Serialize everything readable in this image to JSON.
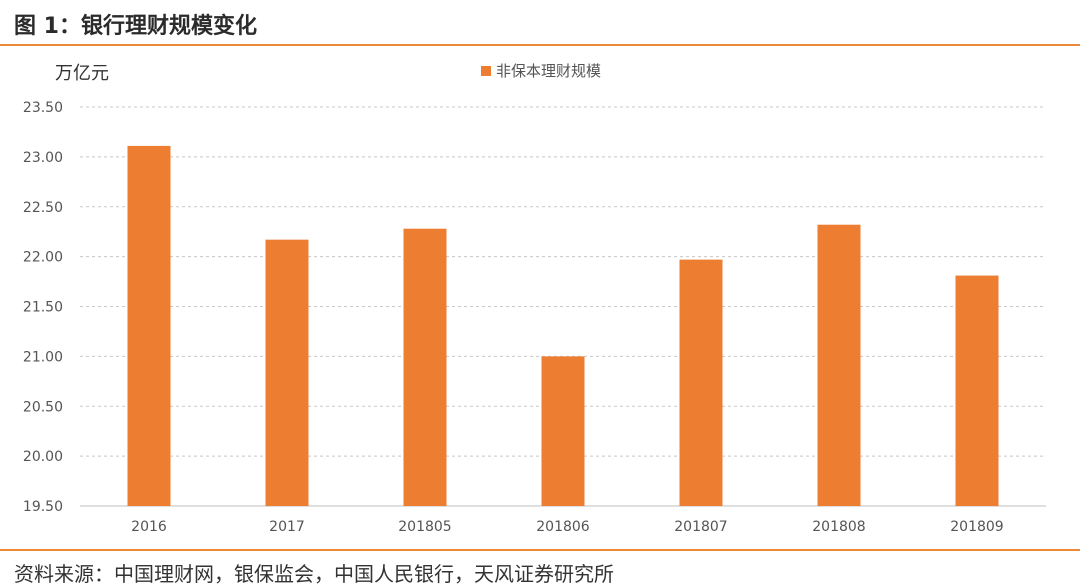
{
  "figure": {
    "title": "图 1：银行理财规模变化",
    "source": "资料来源：中国理财网，银保监会，中国人民银行，天风证券研究所"
  },
  "colors": {
    "accent": "#ec8a3a",
    "bar": "#ed7d31",
    "grid": "#c8c8c8"
  },
  "chart_data": {
    "type": "bar",
    "title": "",
    "xlabel": "",
    "ylabel": "万亿元",
    "categories": [
      "2016",
      "2017",
      "201805",
      "201806",
      "201807",
      "201808",
      "201809"
    ],
    "series": [
      {
        "name": "非保本理财规模",
        "values": [
          23.11,
          22.17,
          22.28,
          21.0,
          21.97,
          22.32,
          21.81
        ]
      }
    ],
    "ylim": [
      19.5,
      23.5
    ],
    "yticks": [
      "19.50",
      "20.00",
      "20.50",
      "21.00",
      "21.50",
      "22.00",
      "22.50",
      "23.00",
      "23.50"
    ],
    "grid": true,
    "legend_position": "top-center"
  }
}
